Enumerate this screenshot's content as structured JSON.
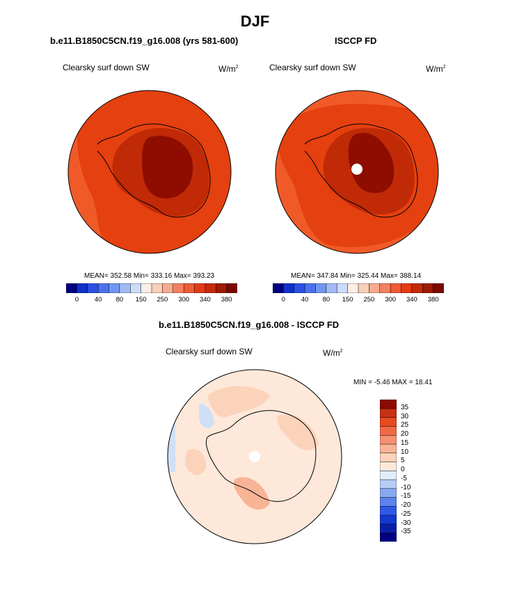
{
  "page_title": "DJF",
  "colors": {
    "bg": "#ffffff",
    "coast": "#000000",
    "pole_hole": "#ffffff"
  },
  "chart_data": [
    {
      "type": "heatmap",
      "projection": "south-polar-stereographic",
      "title": "b.e11.B1850C5CN.f19_g16.008 (yrs 581-600)",
      "variable": "Clearsky surf down SW",
      "units": "W/m",
      "units_sup": "2",
      "stats": "MEAN= 352.58  Min= 333.16  Max= 393.23",
      "mean": 352.58,
      "min": 333.16,
      "max": 393.23,
      "colorbar": {
        "orientation": "horizontal",
        "colors": [
          "#000080",
          "#1030c8",
          "#2a50e0",
          "#4a72ec",
          "#7396f2",
          "#a0baf6",
          "#cadcfa",
          "#fbeee6",
          "#f8cfba",
          "#f6ab8e",
          "#f28060",
          "#ef5a32",
          "#e63a14",
          "#c52a0a",
          "#9e1a04",
          "#7a0a00"
        ],
        "tick_labels": [
          "0",
          "40",
          "80",
          "150",
          "250",
          "300",
          "340",
          "380"
        ]
      },
      "field_levels": [
        "#f05a28",
        "#e5400f",
        "#c02a06",
        "#8e0d00"
      ]
    },
    {
      "type": "heatmap",
      "projection": "south-polar-stereographic",
      "title": "ISCCP FD",
      "variable": "Clearsky surf down SW",
      "units": "W/m",
      "units_sup": "2",
      "stats": "MEAN= 347.84  Min= 325.44  Max= 388.14",
      "mean": 347.84,
      "min": 325.44,
      "max": 388.14,
      "colorbar": {
        "orientation": "horizontal",
        "colors": [
          "#000080",
          "#1030c8",
          "#2a50e0",
          "#4a72ec",
          "#7396f2",
          "#a0baf6",
          "#cadcfa",
          "#fbeee6",
          "#f8cfba",
          "#f6ab8e",
          "#f28060",
          "#ef5a32",
          "#e63a14",
          "#c52a0a",
          "#9e1a04",
          "#7a0a00"
        ],
        "tick_labels": [
          "0",
          "40",
          "80",
          "150",
          "250",
          "300",
          "340",
          "380"
        ]
      },
      "field_levels": [
        "#f05a28",
        "#e5400f",
        "#c02a06",
        "#8e0d00"
      ]
    },
    {
      "type": "heatmap",
      "projection": "south-polar-stereographic",
      "title": "b.e11.B1850C5CN.f19_g16.008 - ISCCP FD",
      "variable": "Clearsky surf down SW",
      "units": "W/m",
      "units_sup": "2",
      "stats": "MIN =  -5.46 MAX =  18.41",
      "min": -5.46,
      "max": 18.41,
      "colorbar": {
        "orientation": "vertical",
        "colors": [
          "#000080",
          "#0a1ea8",
          "#1438d0",
          "#2f58e6",
          "#5c82ee",
          "#8aa8f2",
          "#b7cdf6",
          "#dfeefa",
          "#fde8da",
          "#fbd2ba",
          "#f8b496",
          "#f59070",
          "#f06a44",
          "#e84a20",
          "#c83014",
          "#8c0a00"
        ],
        "tick_labels": [
          "35",
          "30",
          "25",
          "20",
          "15",
          "10",
          "5",
          "0",
          "-5",
          "-10",
          "-15",
          "-20",
          "-25",
          "-30",
          "-35"
        ]
      },
      "field_levels": [
        "#fde8da",
        "#fbd2ba",
        "#f8b496",
        "#dfeefa",
        "#b7cdf6"
      ]
    }
  ]
}
